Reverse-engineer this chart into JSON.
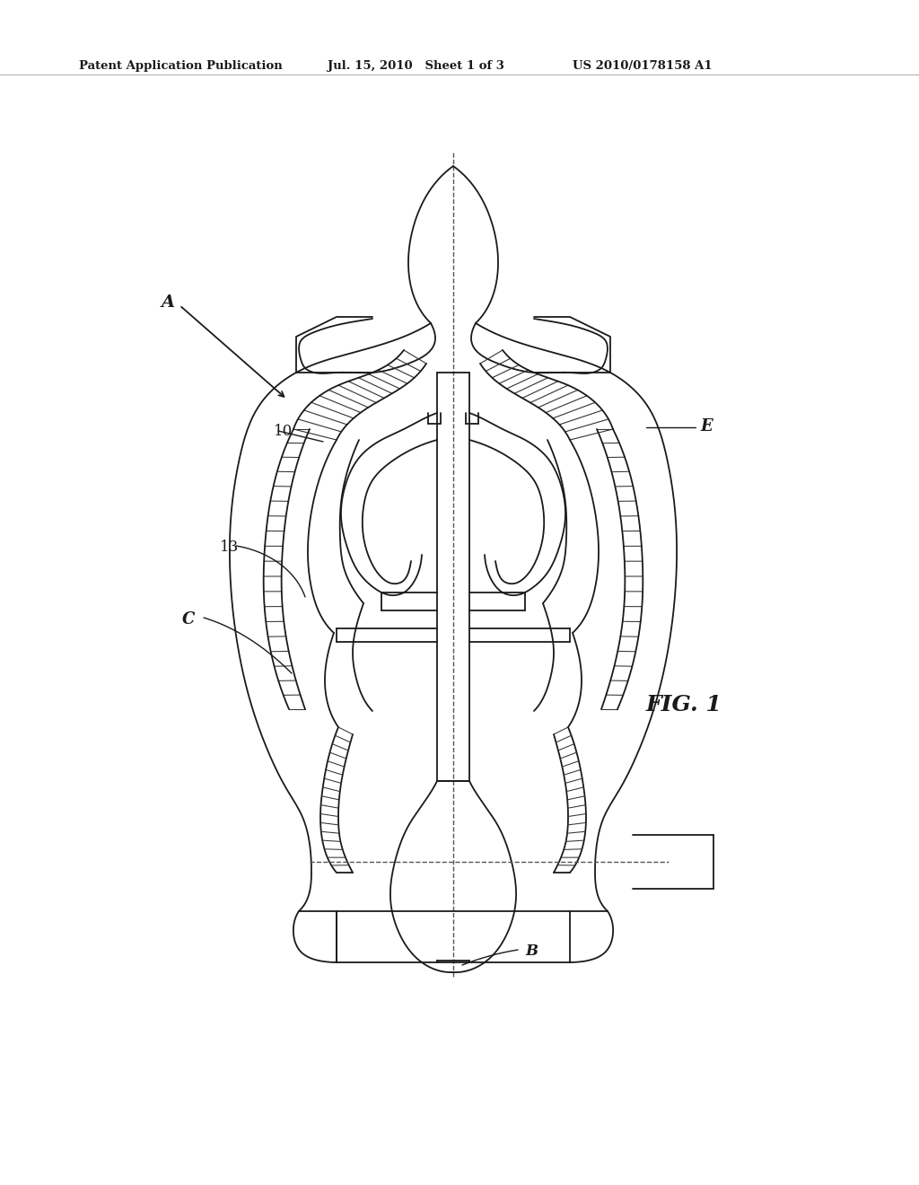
{
  "bg_color": "#ffffff",
  "line_color": "#1a1a1a",
  "header_text": "Patent Application Publication",
  "header_date": "Jul. 15, 2010   Sheet 1 of 3",
  "header_patent": "US 2010/0178158 A1",
  "fig_label": "FIG. 1",
  "label_A": "A",
  "label_B": "B",
  "label_C": "C",
  "label_E": "E",
  "label_10": "10",
  "label_13": "13"
}
